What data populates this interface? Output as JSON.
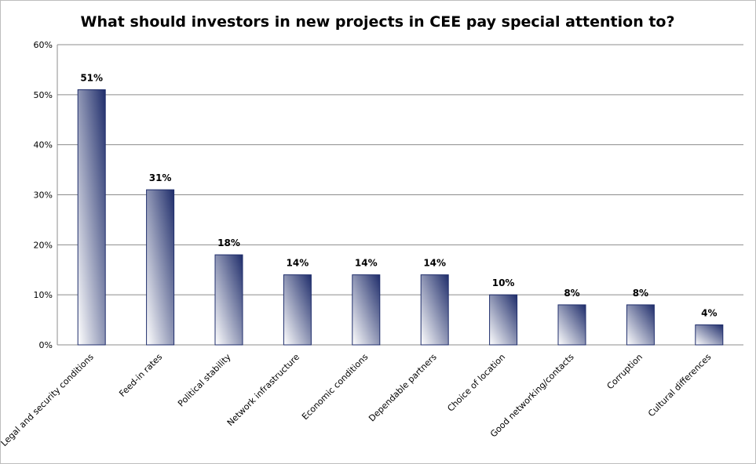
{
  "chart_data": {
    "type": "bar",
    "title": "What should investors in new projects in CEE pay special attention to?",
    "categories": [
      "Legal and security conditions",
      "Feed-in rates",
      "Political stability",
      "Network infrastructure",
      "Economic conditions",
      "Dependable partners",
      "Choice of location",
      "Good networking/contacts",
      "Corruption",
      "Cultural differences"
    ],
    "values": [
      51,
      31,
      18,
      14,
      14,
      14,
      10,
      8,
      8,
      4
    ],
    "value_labels": [
      "51%",
      "31%",
      "18%",
      "14%",
      "14%",
      "14%",
      "10%",
      "8%",
      "8%",
      "4%"
    ],
    "y_ticks": [
      0,
      10,
      20,
      30,
      40,
      50,
      60
    ],
    "y_tick_labels": [
      "0%",
      "10%",
      "20%",
      "30%",
      "40%",
      "50%",
      "60%"
    ],
    "ylim": [
      0,
      60
    ],
    "grid": true,
    "legend": "none",
    "colors": {
      "bar_dark": "#1f2d6b",
      "bar_light": "#ffffff",
      "bar_edge": "#1f2d6b",
      "grid": "#8c8c8c",
      "axis_text": "#000000"
    }
  }
}
